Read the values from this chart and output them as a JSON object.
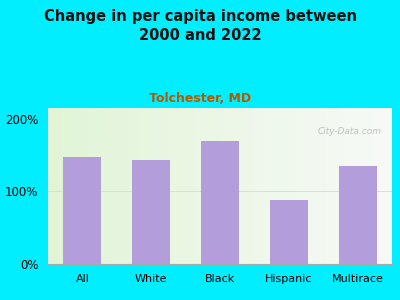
{
  "title": "Change in per capita income between\n2000 and 2022",
  "subtitle": "Tolchester, MD",
  "categories": [
    "All",
    "White",
    "Black",
    "Hispanic",
    "Multirace"
  ],
  "values": [
    148,
    143,
    170,
    88,
    135
  ],
  "bar_color": "#b39ddb",
  "background_color": "#00eeff",
  "plot_bg_left": "#dcedc8",
  "plot_bg_right": "#f5f5f5",
  "title_color": "#111111",
  "subtitle_color": "#b35900",
  "yticks": [
    0,
    100,
    200
  ],
  "ytick_labels": [
    "0%",
    "100%",
    "200%"
  ],
  "ylim": [
    0,
    215
  ],
  "watermark": "City-Data.com",
  "title_fontsize": 10.5,
  "subtitle_fontsize": 9
}
